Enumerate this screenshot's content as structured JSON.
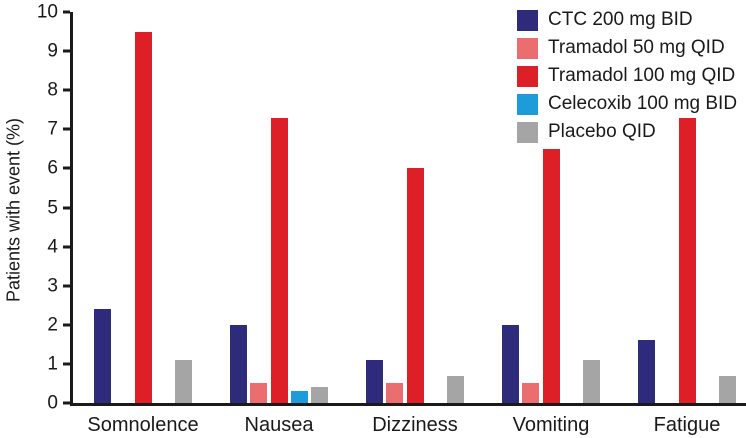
{
  "chart_data": {
    "type": "bar",
    "title": "",
    "xlabel": "",
    "ylabel": "Patients with event (%)",
    "ylim": [
      0,
      10
    ],
    "yticks": [
      0,
      1,
      2,
      3,
      4,
      5,
      6,
      7,
      8,
      9,
      10
    ],
    "grid": false,
    "legend_position": "top-right",
    "axis_color": "#1a1a1a",
    "categories": [
      "Somnolence",
      "Nausea",
      "Dizziness",
      "Vomiting",
      "Fatigue"
    ],
    "series": [
      {
        "name": "CTC 200 mg BID",
        "color": "#2f2b7c",
        "values": [
          2.4,
          2.0,
          1.1,
          2.0,
          1.6
        ]
      },
      {
        "name": "Tramadol 50 mg QID",
        "color": "#ea6e70",
        "values": [
          0,
          0.5,
          0.5,
          0.5,
          0
        ]
      },
      {
        "name": "Tramadol 100 mg QID",
        "color": "#dd2027",
        "values": [
          9.5,
          7.3,
          6.0,
          6.5,
          7.3
        ]
      },
      {
        "name": "Celecoxib 100 mg BID",
        "color": "#1e9cd9",
        "values": [
          0,
          0.3,
          0,
          0,
          0
        ]
      },
      {
        "name": "Placebo QID",
        "color": "#a6a5a5",
        "values": [
          1.1,
          0.4,
          0.7,
          1.1,
          0.7
        ]
      }
    ]
  }
}
